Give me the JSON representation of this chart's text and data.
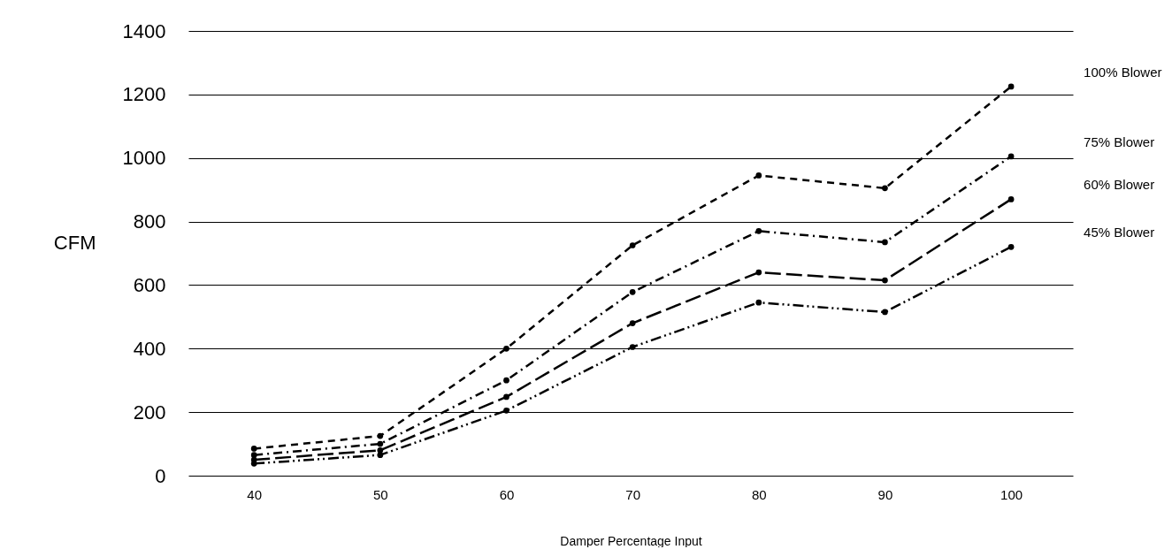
{
  "chart_data": {
    "type": "line",
    "xlabel": "Damper Percentage Input",
    "ylabel": "CFM",
    "categories": [
      "40",
      "50",
      "60",
      "70",
      "80",
      "90",
      "100"
    ],
    "series": [
      {
        "name": "100% Blower",
        "color": "#000000",
        "line_style": "dashed",
        "values": [
          85,
          125,
          400,
          725,
          945,
          905,
          1225
        ]
      },
      {
        "name": "75% Blower",
        "color": "#000000",
        "line_style": "dashed",
        "values": [
          65,
          100,
          300,
          578,
          770,
          735,
          1005
        ]
      },
      {
        "name": "60% Blower",
        "color": "#000000",
        "line_style": "dashed",
        "values": [
          50,
          80,
          248,
          480,
          640,
          615,
          870
        ]
      },
      {
        "name": "45% Blower",
        "color": "#000000",
        "line_style": "dashed",
        "values": [
          38,
          65,
          205,
          405,
          545,
          515,
          720
        ]
      }
    ],
    "ylim": [
      0,
      1400
    ],
    "yticks": [
      0,
      200,
      400,
      600,
      800,
      1000,
      1200,
      1400
    ],
    "grid": "y",
    "marker": "circle"
  }
}
